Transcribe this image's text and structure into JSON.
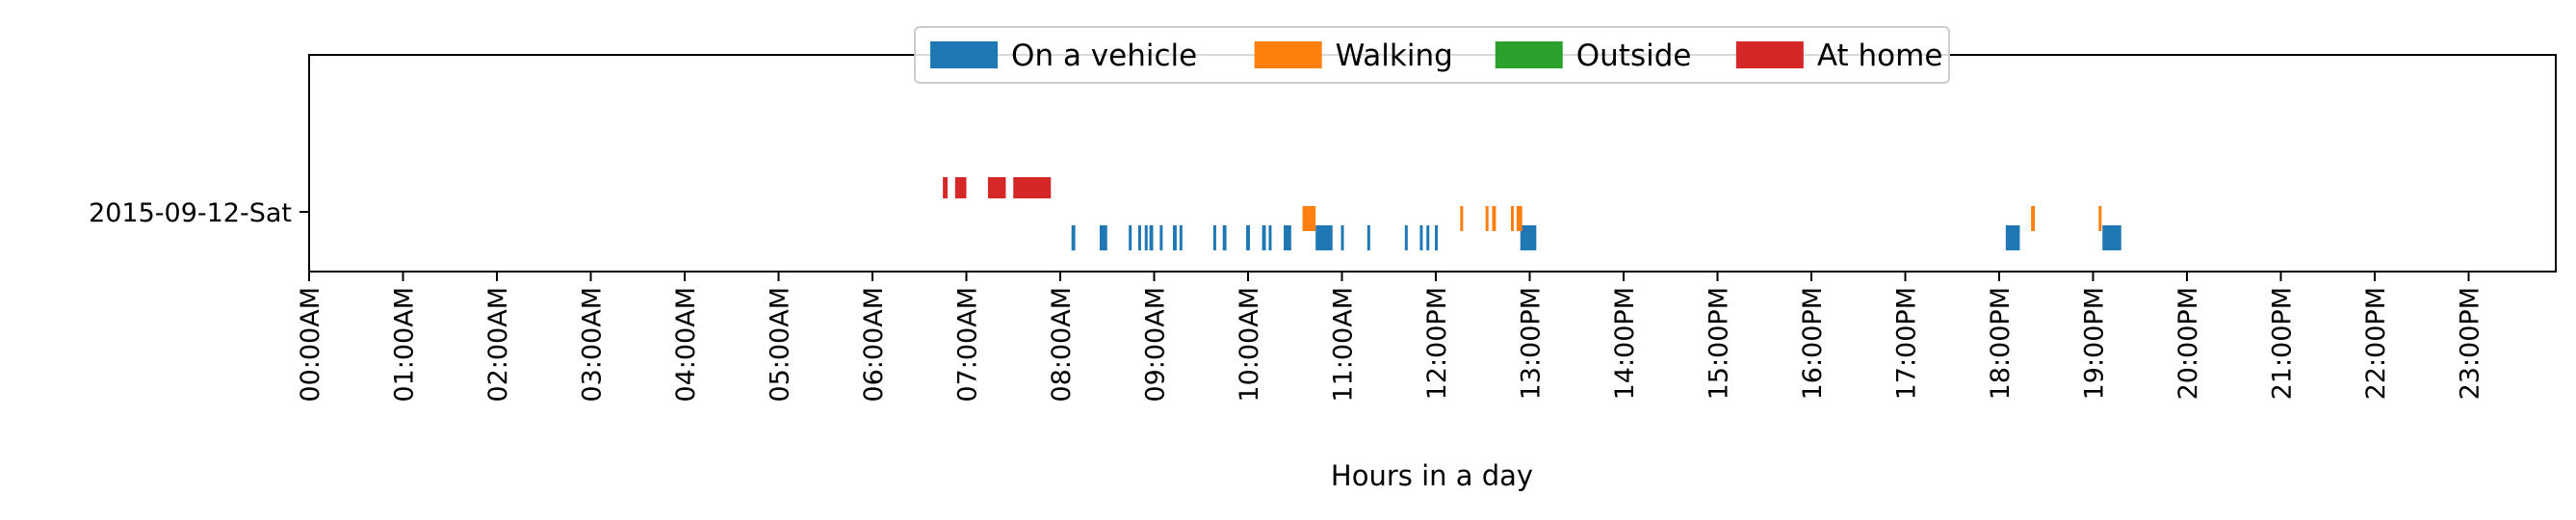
{
  "chart_data": {
    "type": "timeline",
    "xlabel": "Hours in a day",
    "ylabel": "",
    "xlim": [
      0,
      24
    ],
    "x_ticks": [
      "00:00AM",
      "01:00AM",
      "02:00AM",
      "03:00AM",
      "04:00AM",
      "05:00AM",
      "06:00AM",
      "07:00AM",
      "08:00AM",
      "09:00AM",
      "10:00AM",
      "11:00AM",
      "12:00PM",
      "13:00PM",
      "14:00PM",
      "15:00PM",
      "16:00PM",
      "17:00PM",
      "18:00PM",
      "19:00PM",
      "20:00PM",
      "21:00PM",
      "22:00PM",
      "23:00PM"
    ],
    "rows": [
      "2015-09-12-Sat"
    ],
    "legend_position": "top-center",
    "series": [
      {
        "name": "On a vehicle",
        "color": "#1f77b4",
        "lane": "bottom",
        "intervals": [
          [
            8.12,
            8.16
          ],
          [
            8.42,
            8.5
          ],
          [
            8.73,
            8.76
          ],
          [
            8.83,
            8.86
          ],
          [
            8.9,
            8.93
          ],
          [
            8.95,
            8.99
          ],
          [
            9.06,
            9.09
          ],
          [
            9.2,
            9.24
          ],
          [
            9.27,
            9.3
          ],
          [
            9.63,
            9.66
          ],
          [
            9.73,
            9.77
          ],
          [
            9.98,
            10.02
          ],
          [
            10.15,
            10.19
          ],
          [
            10.22,
            10.25
          ],
          [
            10.38,
            10.46
          ],
          [
            10.72,
            10.9
          ],
          [
            10.99,
            11.02
          ],
          [
            11.27,
            11.3
          ],
          [
            11.67,
            11.7
          ],
          [
            11.83,
            11.86
          ],
          [
            11.9,
            11.93
          ],
          [
            11.99,
            12.02
          ],
          [
            12.9,
            13.07
          ],
          [
            18.07,
            18.22
          ],
          [
            19.1,
            19.3
          ]
        ]
      },
      {
        "name": "Walking",
        "color": "#ff7f0e",
        "lane": "middle",
        "intervals": [
          [
            10.58,
            10.72
          ],
          [
            12.26,
            12.29
          ],
          [
            12.53,
            12.56
          ],
          [
            12.6,
            12.64
          ],
          [
            12.8,
            12.83
          ],
          [
            12.86,
            12.92
          ],
          [
            18.34,
            18.38
          ],
          [
            19.06,
            19.09
          ]
        ]
      },
      {
        "name": "Outside",
        "color": "#2ca02c",
        "lane": "top",
        "intervals": []
      },
      {
        "name": "At home",
        "color": "#d62728",
        "lane": "top",
        "intervals": [
          [
            6.75,
            6.8
          ],
          [
            6.88,
            7.0
          ],
          [
            7.23,
            7.42
          ],
          [
            7.5,
            7.9
          ]
        ]
      }
    ]
  }
}
